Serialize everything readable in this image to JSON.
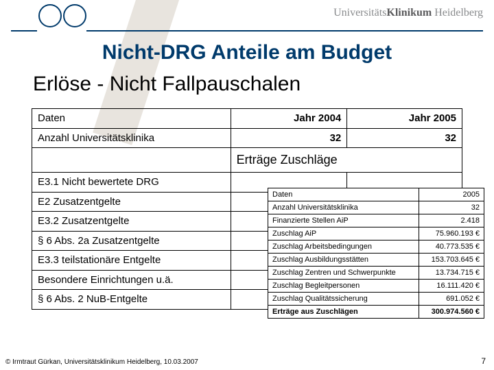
{
  "brand": {
    "part1": "Universitäts",
    "part2": "Klinikum",
    "part3": " Heidelberg"
  },
  "title": "Nicht-DRG Anteile am Budget",
  "subtitle": "Erlöse - Nicht Fallpauschalen",
  "mainTable": {
    "headers": {
      "a": "Daten",
      "b": "Jahr 2004",
      "c": "Jahr 2005"
    },
    "row1": {
      "a": "Anzahl Universitätsklinika",
      "b": "32",
      "c": "32"
    },
    "sectionLabel": "Erträge Zuschläge",
    "rows": [
      "E3.1 Nicht bewertete DRG",
      "E2 Zusatzentgelte",
      "E3.2 Zusatzentgelte",
      "§ 6 Abs. 2a Zusatzentgelte",
      "E3.3 teilstationäre Entgelte",
      "Besondere Einrichtungen u.ä.",
      "§ 6 Abs. 2 NuB-Entgelte"
    ]
  },
  "smallTable": {
    "headers": {
      "a": "Daten",
      "b": "2005"
    },
    "rows": [
      {
        "a": "Anzahl Universitätsklinika",
        "b": "32"
      },
      {
        "a": "Finanzierte Stellen AiP",
        "b": "2.418"
      },
      {
        "a": "Zuschlag AiP",
        "b": "75.960.193 €"
      },
      {
        "a": "Zuschlag Arbeitsbedingungen",
        "b": "40.773.535 €"
      },
      {
        "a": "Zuschlag Ausbildungsstätten",
        "b": "153.703.645 €"
      },
      {
        "a": "Zuschlag Zentren und Schwerpunkte",
        "b": "13.734.715 €"
      },
      {
        "a": "Zuschlag Begleitpersonen",
        "b": "16.111.420 €"
      },
      {
        "a": "Zuschlag Qualitätssicherung",
        "b": "691.052 €"
      }
    ],
    "total": {
      "a": "Erträge aus Zuschlägen",
      "b": "300.974.560 €"
    }
  },
  "footer": "© Irmtraut Gürkan, Universitätsklinikum Heidelberg, 10.03.2007",
  "pageNum": "7"
}
